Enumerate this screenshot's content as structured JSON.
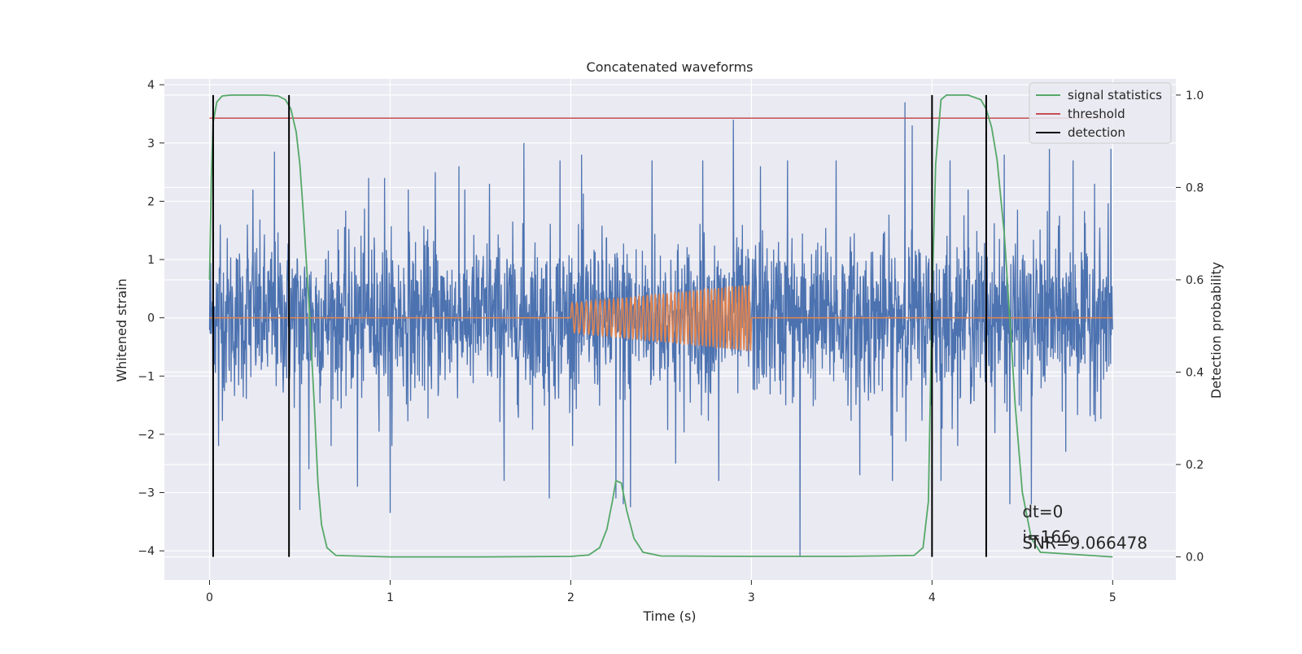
{
  "chart_data": {
    "type": "line",
    "title": "Concatenated waveforms",
    "xlabel": "Time (s)",
    "ylabel": "Whitened strain",
    "ylabel_right": "Detection probability",
    "xlim": [
      -0.25,
      5.35
    ],
    "ylim": [
      -4.5,
      4.1
    ],
    "ylim_right": [
      -0.05,
      1.035
    ],
    "x_ticks": [
      0,
      1,
      2,
      3,
      4,
      5
    ],
    "y_ticks": [
      -4,
      -3,
      -2,
      -1,
      0,
      1,
      2,
      3,
      4
    ],
    "y_ticks_right": [
      0.0,
      0.2,
      0.4,
      0.6,
      0.8,
      1.0
    ],
    "grid": true,
    "legend_position": "top-right",
    "colors": {
      "background": "#eaeaf2",
      "strain": "#4c72b0",
      "injection": "#dd8452",
      "signal_statistics": "#55a868",
      "threshold": "#c44e52",
      "detection": "#000000"
    },
    "series": [
      {
        "name": "strain",
        "axis": "left",
        "description_stat": "noise",
        "x_range": [
          0,
          5
        ],
        "typical_amplitude": 0.9,
        "peak_values": [
          {
            "x": 0.05,
            "y": -2.2
          },
          {
            "x": 0.06,
            "y": 1.6
          },
          {
            "x": 0.21,
            "y": 1.6
          },
          {
            "x": 0.24,
            "y": 2.2
          },
          {
            "x": 0.36,
            "y": 2.85
          },
          {
            "x": 0.44,
            "y": 2.8
          },
          {
            "x": 0.5,
            "y": -3.3
          },
          {
            "x": 0.55,
            "y": -2.6
          },
          {
            "x": 0.82,
            "y": -2.9
          },
          {
            "x": 0.88,
            "y": 2.4
          },
          {
            "x": 0.97,
            "y": 2.4
          },
          {
            "x": 1.0,
            "y": -3.35
          },
          {
            "x": 1.1,
            "y": 2.2
          },
          {
            "x": 1.25,
            "y": 2.5
          },
          {
            "x": 1.38,
            "y": 2.6
          },
          {
            "x": 1.55,
            "y": 2.3
          },
          {
            "x": 1.63,
            "y": -2.8
          },
          {
            "x": 1.74,
            "y": 3.0
          },
          {
            "x": 1.88,
            "y": -3.1
          },
          {
            "x": 1.94,
            "y": 2.7
          },
          {
            "x": 2.06,
            "y": 2.8
          },
          {
            "x": 2.25,
            "y": -3.1
          },
          {
            "x": 2.29,
            "y": -3.2
          },
          {
            "x": 2.33,
            "y": -3.25
          },
          {
            "x": 2.45,
            "y": 2.7
          },
          {
            "x": 2.58,
            "y": -2.5
          },
          {
            "x": 2.73,
            "y": 2.7
          },
          {
            "x": 2.82,
            "y": -2.8
          },
          {
            "x": 2.9,
            "y": 3.4
          },
          {
            "x": 3.05,
            "y": 2.6
          },
          {
            "x": 3.2,
            "y": 2.7
          },
          {
            "x": 3.27,
            "y": -4.1
          },
          {
            "x": 3.47,
            "y": 2.7
          },
          {
            "x": 3.6,
            "y": -2.7
          },
          {
            "x": 3.78,
            "y": -2.8
          },
          {
            "x": 3.85,
            "y": 3.7
          },
          {
            "x": 3.89,
            "y": 3.3
          },
          {
            "x": 4.1,
            "y": 2.7
          },
          {
            "x": 4.2,
            "y": 2.2
          },
          {
            "x": 4.4,
            "y": 2.8
          },
          {
            "x": 4.55,
            "y": 2.6
          },
          {
            "x": 4.65,
            "y": 2.9
          },
          {
            "x": 4.78,
            "y": 2.7
          },
          {
            "x": 4.9,
            "y": 2.3
          },
          {
            "x": 4.99,
            "y": 2.9
          },
          {
            "x": 4.74,
            "y": -2.3
          },
          {
            "x": 4.55,
            "y": -3.2
          },
          {
            "x": 4.43,
            "y": -3.2
          },
          {
            "x": 4.05,
            "y": -2.8
          }
        ]
      },
      {
        "name": "injection",
        "axis": "left",
        "segments": [
          {
            "x": [
              0,
              2
            ],
            "y": [
              0,
              0
            ]
          },
          {
            "x": [
              2,
              3
            ],
            "y_amplitude": [
              0.25,
              0.57
            ],
            "cycles": 46
          },
          {
            "x": [
              3,
              5
            ],
            "y": [
              0,
              0
            ]
          }
        ]
      },
      {
        "name": "signal statistics",
        "axis": "right",
        "x": [
          0,
          0.01,
          0.02,
          0.04,
          0.07,
          0.12,
          0.2,
          0.3,
          0.38,
          0.42,
          0.45,
          0.48,
          0.5,
          0.52,
          0.55,
          0.58,
          0.6,
          0.62,
          0.65,
          0.7,
          1.0,
          1.5,
          2.0,
          2.1,
          2.16,
          2.2,
          2.23,
          2.25,
          2.28,
          2.31,
          2.35,
          2.4,
          2.5,
          3.0,
          3.5,
          3.7,
          3.9,
          3.95,
          3.98,
          4.0,
          4.02,
          4.05,
          4.08,
          4.2,
          4.27,
          4.3,
          4.33,
          4.36,
          4.4,
          4.43,
          4.46,
          4.5,
          4.55,
          4.6,
          5.0
        ],
        "y": [
          0.6,
          0.82,
          0.94,
          0.985,
          0.998,
          1.0,
          1.0,
          1.0,
          0.998,
          0.99,
          0.97,
          0.92,
          0.85,
          0.74,
          0.55,
          0.33,
          0.16,
          0.07,
          0.02,
          0.003,
          0.0,
          0.0,
          0.001,
          0.004,
          0.02,
          0.06,
          0.12,
          0.165,
          0.16,
          0.1,
          0.04,
          0.01,
          0.002,
          0.001,
          0.001,
          0.002,
          0.003,
          0.02,
          0.12,
          0.55,
          0.85,
          0.99,
          1.0,
          1.0,
          0.99,
          0.97,
          0.93,
          0.86,
          0.7,
          0.52,
          0.33,
          0.14,
          0.04,
          0.01,
          0.0
        ]
      },
      {
        "name": "threshold",
        "axis": "right",
        "x": [
          0,
          5
        ],
        "y": [
          0.95,
          0.95
        ]
      },
      {
        "name": "detection",
        "axis": "right",
        "vlines_x": [
          0.02,
          0.44,
          4.0,
          4.3
        ],
        "y_range": [
          0.0,
          1.0
        ]
      }
    ],
    "legend": [
      "signal statistics",
      "threshold",
      "detection"
    ],
    "annotations": [
      {
        "text": "dt=0"
      },
      {
        "text": "i=166"
      },
      {
        "text": "SNR=9.066478"
      }
    ]
  }
}
